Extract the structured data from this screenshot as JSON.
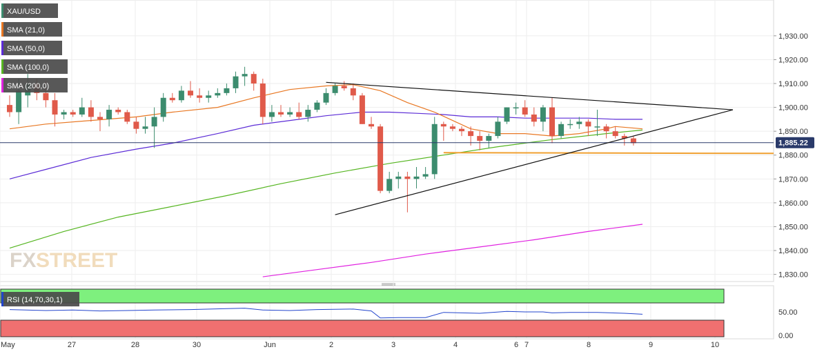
{
  "chart_data": {
    "type": "candlestick",
    "symbol": "XAU/USD",
    "ylim": [
      1827,
      1945
    ],
    "price_ticks": [
      "1,830.00",
      "1,840.00",
      "1,850.00",
      "1,860.00",
      "1,870.00",
      "1,880.00",
      "1,890.00",
      "1,900.00",
      "1,910.00",
      "1,920.00",
      "1,930.00"
    ],
    "current_price": 1885.22,
    "current_price_label": "1,885.22",
    "date_labels": [
      "May",
      "27",
      "28",
      "30",
      "Jun",
      "2",
      "3",
      "4",
      "6",
      "7",
      "8",
      "9",
      "10"
    ],
    "legend": [
      "XAU/USD",
      "SMA (21,0)",
      "SMA (50,0)",
      "SMA (100,0)",
      "SMA (200,0)"
    ],
    "colors": {
      "bull": "#3c8c6e",
      "bear": "#e05a4a",
      "sma21": "#e87722",
      "sma50": "#5b2bd6",
      "sma100": "#55b520",
      "sma200": "#e020e0",
      "rsi": "#2244cc",
      "rsi_upper": "#7ef07e",
      "rsi_lower": "#f07070",
      "support": "#f0a030",
      "hline": "#2a3a6a",
      "trend": "#111111",
      "badge": "#2a3a6a",
      "legend_bg": "#4a4a4a"
    },
    "candles": [
      [
        1901,
        1905,
        1896,
        1898
      ],
      [
        1898,
        1912,
        1893,
        1907
      ],
      [
        1905,
        1914,
        1900,
        1910
      ],
      [
        1910,
        1912,
        1903,
        1906
      ],
      [
        1906,
        1911,
        1900,
        1903
      ],
      [
        1903,
        1906,
        1892,
        1897
      ],
      [
        1897,
        1899,
        1895,
        1898
      ],
      [
        1898,
        1899,
        1896,
        1897
      ],
      [
        1897,
        1904,
        1896,
        1900
      ],
      [
        1900,
        1903,
        1894,
        1896
      ],
      [
        1896,
        1898,
        1890,
        1895
      ],
      [
        1895,
        1901,
        1892,
        1899
      ],
      [
        1899,
        1900,
        1897,
        1898
      ],
      [
        1898,
        1899,
        1893,
        1894
      ],
      [
        1894,
        1896,
        1889,
        1891
      ],
      [
        1891,
        1896,
        1889,
        1892
      ],
      [
        1892,
        1900,
        1883,
        1896
      ],
      [
        1896,
        1906,
        1894,
        1904
      ],
      [
        1904,
        1906,
        1902,
        1903
      ],
      [
        1903,
        1909,
        1902,
        1907
      ],
      [
        1907,
        1911,
        1904,
        1905
      ],
      [
        1905,
        1908,
        1902,
        1904
      ],
      [
        1904,
        1907,
        1902,
        1905
      ],
      [
        1905,
        1908,
        1904,
        1906
      ],
      [
        1906,
        1910,
        1905,
        1908
      ],
      [
        1908,
        1915,
        1906,
        1913
      ],
      [
        1913,
        1917,
        1909,
        1914
      ],
      [
        1914,
        1915,
        1907,
        1910
      ],
      [
        1910,
        1912,
        1893,
        1896
      ],
      [
        1896,
        1901,
        1894,
        1898
      ],
      [
        1898,
        1901,
        1896,
        1897
      ],
      [
        1897,
        1900,
        1896,
        1898
      ],
      [
        1898,
        1902,
        1895,
        1896
      ],
      [
        1896,
        1901,
        1894,
        1899
      ],
      [
        1899,
        1903,
        1898,
        1902
      ],
      [
        1902,
        1908,
        1901,
        1906
      ],
      [
        1906,
        1910,
        1905,
        1909
      ],
      [
        1909,
        1911,
        1907,
        1908
      ],
      [
        1908,
        1910,
        1903,
        1905
      ],
      [
        1905,
        1906,
        1893,
        1893
      ],
      [
        1893,
        1896,
        1891,
        1892
      ],
      [
        1892,
        1893,
        1864,
        1865
      ],
      [
        1865,
        1873,
        1864,
        1870
      ],
      [
        1870,
        1873,
        1866,
        1871
      ],
      [
        1871,
        1873,
        1856,
        1870
      ],
      [
        1870,
        1875,
        1866,
        1871
      ],
      [
        1871,
        1875,
        1870,
        1872
      ],
      [
        1872,
        1896,
        1870,
        1893
      ],
      [
        1893,
        1894,
        1886,
        1892
      ],
      [
        1892,
        1893,
        1890,
        1891
      ],
      [
        1891,
        1892,
        1888,
        1890
      ],
      [
        1890,
        1892,
        1884,
        1888
      ],
      [
        1888,
        1890,
        1882,
        1886
      ],
      [
        1886,
        1889,
        1883,
        1888
      ],
      [
        1888,
        1896,
        1887,
        1894
      ],
      [
        1894,
        1900,
        1893,
        1900
      ],
      [
        1900,
        1902,
        1897,
        1900
      ],
      [
        1900,
        1903,
        1896,
        1897
      ],
      [
        1897,
        1900,
        1892,
        1894
      ],
      [
        1894,
        1901,
        1890,
        1900
      ],
      [
        1900,
        1904,
        1885,
        1888
      ],
      [
        1888,
        1894,
        1887,
        1893
      ],
      [
        1893,
        1895,
        1891,
        1893
      ],
      [
        1893,
        1896,
        1891,
        1894
      ],
      [
        1894,
        1895,
        1888,
        1892
      ],
      [
        1892,
        1899,
        1888,
        1892
      ],
      [
        1892,
        1893,
        1887,
        1890
      ],
      [
        1890,
        1892,
        1887,
        1888
      ],
      [
        1888,
        1889,
        1884,
        1887
      ],
      [
        1887,
        1888,
        1884,
        1885
      ]
    ],
    "sma21": [
      [
        0,
        1891
      ],
      [
        4,
        1893
      ],
      [
        9,
        1894.5
      ],
      [
        14,
        1896
      ],
      [
        18,
        1898
      ],
      [
        23,
        1900
      ],
      [
        27,
        1904
      ],
      [
        31,
        1907.5
      ],
      [
        35,
        1909
      ],
      [
        38,
        1909.5
      ],
      [
        41,
        1907
      ],
      [
        44,
        1902
      ],
      [
        47,
        1898
      ],
      [
        51,
        1891
      ],
      [
        54,
        1889
      ],
      [
        57,
        1889
      ],
      [
        60,
        1888
      ],
      [
        63,
        1889
      ],
      [
        66,
        1891
      ],
      [
        67,
        1892
      ],
      [
        70,
        1891
      ]
    ],
    "sma50": [
      [
        0,
        1870
      ],
      [
        4,
        1874
      ],
      [
        9,
        1879
      ],
      [
        14,
        1882.5
      ],
      [
        18,
        1885
      ],
      [
        23,
        1889
      ],
      [
        27,
        1892.5
      ],
      [
        31,
        1894.5
      ],
      [
        35,
        1896.5
      ],
      [
        39,
        1898
      ],
      [
        42,
        1898
      ],
      [
        45,
        1897.5
      ],
      [
        48,
        1897
      ],
      [
        51,
        1896
      ],
      [
        54,
        1896
      ],
      [
        57,
        1895.5
      ],
      [
        60,
        1895.5
      ],
      [
        64,
        1895.5
      ],
      [
        67,
        1895
      ],
      [
        70,
        1895
      ]
    ],
    "sma100": [
      [
        0,
        1841
      ],
      [
        6,
        1848
      ],
      [
        12,
        1854
      ],
      [
        18,
        1858.5
      ],
      [
        24,
        1863
      ],
      [
        30,
        1868
      ],
      [
        36,
        1872.5
      ],
      [
        42,
        1876.5
      ],
      [
        48,
        1880
      ],
      [
        54,
        1883.5
      ],
      [
        60,
        1886.5
      ],
      [
        66,
        1889
      ],
      [
        70,
        1890.5
      ]
    ],
    "sma200": [
      [
        28,
        1829
      ],
      [
        34,
        1832
      ],
      [
        40,
        1835
      ],
      [
        46,
        1838.5
      ],
      [
        52,
        1841.5
      ],
      [
        58,
        1844.5
      ],
      [
        64,
        1848
      ],
      [
        70,
        1851
      ]
    ],
    "rsi_ticks": [
      "0.00",
      "50.00"
    ],
    "rsi_label": "RSI (14,70,30,1)",
    "rsi_upper_level": 70,
    "rsi_lower_level": 30,
    "rsi": [
      [
        0,
        55
      ],
      [
        4,
        53
      ],
      [
        7,
        54
      ],
      [
        10,
        52
      ],
      [
        13,
        53
      ],
      [
        16,
        54
      ],
      [
        20,
        55
      ],
      [
        24,
        57
      ],
      [
        26,
        58
      ],
      [
        28,
        54
      ],
      [
        31,
        53
      ],
      [
        34,
        55
      ],
      [
        38,
        56
      ],
      [
        40,
        52
      ],
      [
        41,
        37
      ],
      [
        43,
        38
      ],
      [
        46,
        38
      ],
      [
        48,
        49
      ],
      [
        52,
        47
      ],
      [
        55,
        51
      ],
      [
        57,
        50
      ],
      [
        59,
        50
      ],
      [
        60,
        48
      ],
      [
        62,
        49
      ],
      [
        65,
        49
      ],
      [
        68,
        47
      ],
      [
        70,
        45
      ]
    ],
    "trendlines": [
      {
        "name": "upper-trendline",
        "from": [
          35,
          1910.5
        ],
        "to": [
          80,
          1899
        ]
      },
      {
        "name": "lower-trendline",
        "from": [
          36,
          1855
        ],
        "to": [
          80,
          1899
        ]
      }
    ],
    "support_level": {
      "value": 1881,
      "from_index": 48
    }
  }
}
